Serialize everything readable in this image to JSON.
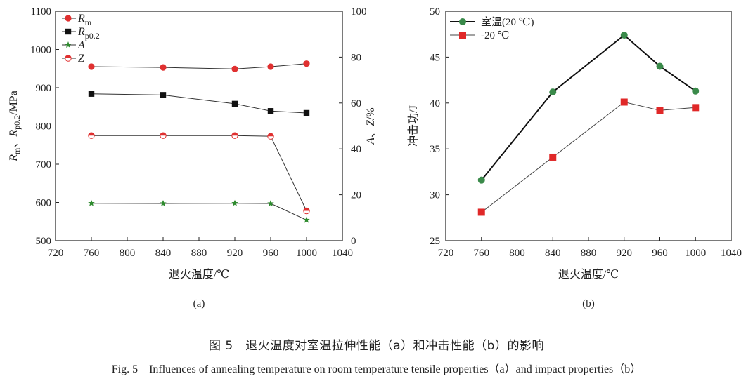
{
  "caption": {
    "cn": "图 5　退火温度对室温拉伸性能（a）和冲击性能（b）的影响",
    "en": "Fig. 5　Influences of annealing temperature on room temperature tensile properties（a）and impact properties（b）"
  },
  "chart_data": [
    {
      "type": "line",
      "panel_label": "(a)",
      "xlabel": "退火温度/℃",
      "ylabel_left": "Rm、Rp0.2/MPa",
      "ylabel_right": "A、Z/%",
      "xlim": [
        720,
        1040
      ],
      "ylim_left": [
        500,
        1100
      ],
      "ylim_right": [
        0,
        100
      ],
      "x_ticks": [
        720,
        760,
        800,
        840,
        880,
        920,
        960,
        1000,
        1040
      ],
      "y_ticks_left": [
        500,
        600,
        700,
        800,
        900,
        1000,
        1100
      ],
      "y_ticks_right": [
        0,
        20,
        40,
        60,
        80,
        100
      ],
      "legend_position": "top-left",
      "x": [
        760,
        840,
        920,
        960,
        1000
      ],
      "series": [
        {
          "name": "Rm",
          "label_main": "R",
          "label_sub": "m",
          "axis": "left",
          "marker": "circle",
          "color": "#e03030",
          "values": [
            955,
            953,
            949,
            955,
            963
          ]
        },
        {
          "name": "Rp0.2",
          "label_main": "R",
          "label_sub": "p0.2",
          "axis": "left",
          "marker": "square",
          "color": "#111111",
          "values": [
            884,
            881,
            858,
            839,
            834
          ]
        },
        {
          "name": "A",
          "label_main": "A",
          "label_sub": "",
          "axis": "right",
          "marker": "star",
          "color": "#2e8b2e",
          "values": [
            16.3,
            16.2,
            16.3,
            16.2,
            9.0
          ]
        },
        {
          "name": "Z",
          "label_main": "Z",
          "label_sub": "",
          "axis": "right",
          "marker": "halfcircle",
          "color": "#e03030",
          "values": [
            45.8,
            45.8,
            45.8,
            45.5,
            13.0
          ]
        }
      ]
    },
    {
      "type": "line",
      "panel_label": "(b)",
      "xlabel": "退火温度/℃",
      "ylabel": "冲击功/J",
      "xlim": [
        720,
        1040
      ],
      "ylim": [
        25,
        50
      ],
      "x_ticks": [
        720,
        760,
        800,
        840,
        880,
        920,
        960,
        1000,
        1040
      ],
      "y_ticks": [
        25,
        30,
        35,
        40,
        45,
        50
      ],
      "legend_position": "top-left",
      "x": [
        760,
        840,
        920,
        960,
        1000
      ],
      "series": [
        {
          "name": "室温(20 ℃)",
          "marker": "circle",
          "color": "#3a8a4a",
          "line_color": "#111111",
          "line_width": 2,
          "values": [
            31.6,
            41.2,
            47.4,
            44.0,
            41.3
          ]
        },
        {
          "name": "-20 ℃",
          "marker": "square",
          "color": "#e02828",
          "line_color": "#444444",
          "line_width": 1,
          "values": [
            28.1,
            34.1,
            40.1,
            39.2,
            39.5
          ]
        }
      ]
    }
  ]
}
